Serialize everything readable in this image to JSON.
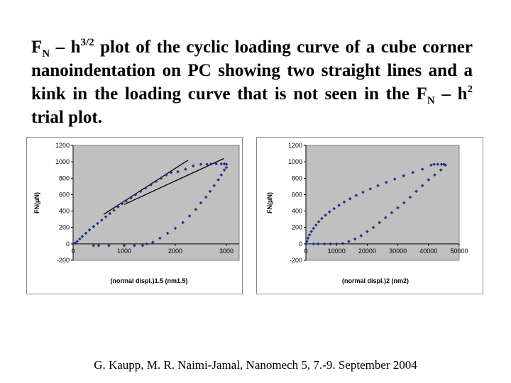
{
  "title": {
    "parts": [
      {
        "t": "F"
      },
      {
        "t": "N",
        "tag": "sub"
      },
      {
        "t": " – h"
      },
      {
        "t": "3/2",
        "tag": "sup"
      },
      {
        "t": " plot of the cyclic loading curve of a cube corner nanoindentation on  PC showing two straight lines and a kink in the loading curve that is not seen in the F"
      },
      {
        "t": "N",
        "tag": "sub"
      },
      {
        "t": " – h"
      },
      {
        "t": "2",
        "tag": "sup"
      },
      {
        "t": "  trial plot."
      }
    ]
  },
  "citation": "G. Kaupp, M. R. Naimi-Jamal, Nanomech 5, 7.-9. September 2004",
  "colors": {
    "marker": "#1f2f8a",
    "plot_bg": "#c0c0c0",
    "panel_bg": "#ffffff",
    "fit_line": "#000000"
  },
  "chart_data": [
    {
      "type": "scatter",
      "title": "",
      "xlabel": "(normal displ.)1.5 (nm1.5)",
      "ylabel": "FN(μN)",
      "xlim": [
        0,
        3250
      ],
      "ylim": [
        -200,
        1200
      ],
      "x_ticks": [
        0,
        1000,
        2000,
        3000
      ],
      "x_tick_labels": [
        "0",
        "1000",
        "2000",
        "3000"
      ],
      "y_ticks": [
        -200,
        0,
        200,
        400,
        600,
        800,
        1000,
        1200
      ],
      "y_tick_labels": [
        "-200",
        "0",
        "200",
        "400",
        "600",
        "800",
        "1000",
        "1200"
      ],
      "grid": false,
      "series": [
        {
          "values": [
            [
              0,
              0
            ],
            [
              40,
              10
            ],
            [
              80,
              30
            ],
            [
              130,
              60
            ],
            [
              180,
              90
            ],
            [
              250,
              130
            ],
            [
              320,
              170
            ],
            [
              400,
              210
            ],
            [
              480,
              250
            ],
            [
              560,
              290
            ],
            [
              640,
              330
            ],
            [
              720,
              370
            ],
            [
              800,
              410
            ],
            [
              880,
              450
            ],
            [
              960,
              490
            ],
            [
              1040,
              520
            ],
            [
              1130,
              560
            ],
            [
              1220,
              600
            ],
            [
              1320,
              640
            ],
            [
              1420,
              680
            ],
            [
              1520,
              720
            ],
            [
              1620,
              760
            ],
            [
              1720,
              800
            ],
            [
              1820,
              840
            ],
            [
              1920,
              870
            ],
            [
              2050,
              880
            ],
            [
              2200,
              910
            ],
            [
              2350,
              950
            ],
            [
              2500,
              970
            ],
            [
              2620,
              970
            ],
            [
              2700,
              975
            ],
            [
              2800,
              975
            ],
            [
              2900,
              975
            ],
            [
              2960,
              975
            ],
            [
              3000,
              970
            ],
            [
              3000,
              930
            ],
            [
              2960,
              900
            ],
            [
              2900,
              840
            ],
            [
              2840,
              780
            ],
            [
              2760,
              710
            ],
            [
              2680,
              640
            ],
            [
              2600,
              570
            ],
            [
              2500,
              500
            ],
            [
              2400,
              420
            ],
            [
              2280,
              340
            ],
            [
              2150,
              260
            ],
            [
              2000,
              190
            ],
            [
              1850,
              130
            ],
            [
              1700,
              70
            ],
            [
              1560,
              20
            ],
            [
              1440,
              0
            ],
            [
              1360,
              -20
            ],
            [
              1200,
              -20
            ],
            [
              1000,
              -20
            ],
            [
              700,
              -20
            ],
            [
              500,
              -20
            ],
            [
              400,
              -20
            ]
          ]
        }
      ],
      "fit_lines": [
        {
          "from": [
            600,
            360
          ],
          "to": [
            2250,
            1020
          ]
        },
        {
          "from": [
            1000,
            480
          ],
          "to": [
            2950,
            1040
          ]
        }
      ]
    },
    {
      "type": "scatter",
      "title": "",
      "xlabel": "(normal displ.)2 (nm2)",
      "ylabel": "FN(μN)",
      "xlim": [
        0,
        50000
      ],
      "ylim": [
        -200,
        1200
      ],
      "x_ticks": [
        0,
        10000,
        20000,
        30000,
        40000,
        50000
      ],
      "x_tick_labels": [
        "0",
        "10000",
        "20000",
        "30000",
        "40000",
        "50000"
      ],
      "y_ticks": [
        -200,
        0,
        200,
        400,
        600,
        800,
        1000,
        1200
      ],
      "y_tick_labels": [
        "-200",
        "0",
        "200",
        "400",
        "600",
        "800",
        "1000",
        "1200"
      ],
      "grid": false,
      "series": [
        {
          "values": [
            [
              0,
              0
            ],
            [
              300,
              30
            ],
            [
              700,
              70
            ],
            [
              1200,
              110
            ],
            [
              1800,
              150
            ],
            [
              2500,
              190
            ],
            [
              3300,
              230
            ],
            [
              4200,
              270
            ],
            [
              5200,
              310
            ],
            [
              6400,
              350
            ],
            [
              7700,
              390
            ],
            [
              9200,
              430
            ],
            [
              10800,
              470
            ],
            [
              12500,
              510
            ],
            [
              14400,
              550
            ],
            [
              16400,
              590
            ],
            [
              18600,
              630
            ],
            [
              21000,
              670
            ],
            [
              23500,
              710
            ],
            [
              26200,
              750
            ],
            [
              29000,
              790
            ],
            [
              31900,
              830
            ],
            [
              34900,
              870
            ],
            [
              38000,
              910
            ],
            [
              40800,
              960
            ],
            [
              41800,
              970
            ],
            [
              43000,
              970
            ],
            [
              44200,
              970
            ],
            [
              45000,
              970
            ],
            [
              45500,
              960
            ],
            [
              44000,
              900
            ],
            [
              42000,
              840
            ],
            [
              40000,
              780
            ],
            [
              38000,
              710
            ],
            [
              36000,
              640
            ],
            [
              34000,
              570
            ],
            [
              32000,
              500
            ],
            [
              30000,
              440
            ],
            [
              28000,
              380
            ],
            [
              26000,
              320
            ],
            [
              24000,
              260
            ],
            [
              22000,
              200
            ],
            [
              20000,
              150
            ],
            [
              18000,
              100
            ],
            [
              16000,
              60
            ],
            [
              14000,
              30
            ],
            [
              12000,
              5
            ],
            [
              10000,
              0
            ],
            [
              8000,
              0
            ],
            [
              6000,
              0
            ],
            [
              4000,
              0
            ],
            [
              2500,
              0
            ]
          ]
        }
      ],
      "fit_lines": []
    }
  ]
}
